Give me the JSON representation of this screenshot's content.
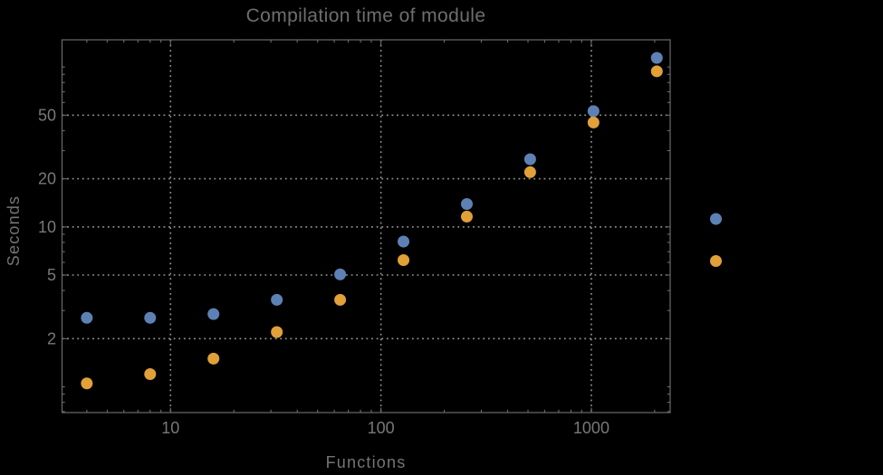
{
  "chart_data": {
    "type": "scatter",
    "title": "Compilation time of module",
    "xlabel": "Functions",
    "ylabel": "Seconds",
    "xscale": "log",
    "yscale": "log",
    "xlim": [
      3.05,
      2370
    ],
    "ylim": [
      0.69,
      148
    ],
    "grid": "major-only-dotted",
    "legend_position": "right-outside",
    "legend_labels_visible": false,
    "x_major_ticks": [
      10,
      100,
      1000
    ],
    "x_tick_labels": [
      "10",
      "100",
      "1000"
    ],
    "y_major_ticks": [
      2,
      5,
      10,
      20,
      50
    ],
    "y_tick_labels": [
      "2",
      "5",
      "10",
      "20",
      "50"
    ],
    "x": [
      4,
      8,
      16,
      32,
      64,
      128,
      256,
      512,
      1024,
      2048
    ],
    "series": [
      {
        "name": "",
        "color": "#5E81B5",
        "values": [
          2.7,
          2.7,
          2.85,
          3.5,
          5.05,
          8.1,
          13.9,
          26.5,
          53,
          114
        ]
      },
      {
        "name": "",
        "color": "#E1A038",
        "values": [
          1.05,
          1.2,
          1.5,
          2.2,
          3.5,
          6.2,
          11.6,
          22,
          45,
          94
        ]
      }
    ]
  },
  "colors": {
    "background": "#000000",
    "frame": "#6b6b6b",
    "gridline": "#949494",
    "tick": "#6b6b6b",
    "text": "#787878",
    "title": "#6e6e6e",
    "series_1": "#5E81B5",
    "series_2": "#E1A038"
  }
}
